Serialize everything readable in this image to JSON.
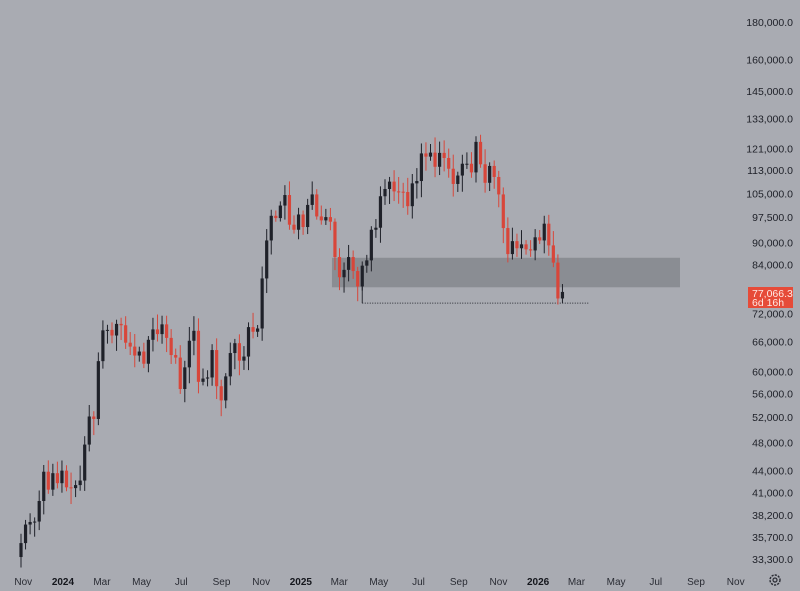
{
  "chart_data": {
    "type": "candlestick",
    "interval": "weekly",
    "y_scale": "log",
    "ylim": [
      32000,
      185000
    ],
    "y_ticks": [
      "180,000.0",
      "160,000.0",
      "145,000.0",
      "133,000.0",
      "121,000.0",
      "113,000.0",
      "105,000.0",
      "97,500.0",
      "90,000.0",
      "84,000.0",
      "72,000.0",
      "66,000.0",
      "60,000.0",
      "56,000.0",
      "52,000.0",
      "48,000.0",
      "44,000.0",
      "41,000.0",
      "38,200.0",
      "35,700.0",
      "33,300.0"
    ],
    "x_ticks": [
      {
        "label": "Nov",
        "date": "2023-11-01",
        "year": false
      },
      {
        "label": "2024",
        "date": "2024-01-01",
        "year": true
      },
      {
        "label": "Mar",
        "date": "2024-03-01",
        "year": false
      },
      {
        "label": "May",
        "date": "2024-05-01",
        "year": false
      },
      {
        "label": "Jul",
        "date": "2024-07-01",
        "year": false
      },
      {
        "label": "Sep",
        "date": "2024-09-01",
        "year": false
      },
      {
        "label": "Nov",
        "date": "2024-11-01",
        "year": false
      },
      {
        "label": "2025",
        "date": "2025-01-01",
        "year": true
      },
      {
        "label": "Mar",
        "date": "2025-03-01",
        "year": false
      },
      {
        "label": "May",
        "date": "2025-05-01",
        "year": false
      },
      {
        "label": "Jul",
        "date": "2025-07-01",
        "year": false
      },
      {
        "label": "Sep",
        "date": "2025-09-01",
        "year": false
      },
      {
        "label": "Nov",
        "date": "2025-11-01",
        "year": false
      },
      {
        "label": "2026",
        "date": "2026-01-01",
        "year": true
      },
      {
        "label": "Mar",
        "date": "2026-03-01",
        "year": false
      },
      {
        "label": "May",
        "date": "2026-05-01",
        "year": false
      },
      {
        "label": "Jul",
        "date": "2026-07-01",
        "year": false
      },
      {
        "label": "Sep",
        "date": "2026-09-01",
        "year": false
      },
      {
        "label": "Nov",
        "date": "2026-11-01",
        "year": false
      }
    ],
    "first_week": "2023-10-30",
    "closes": [
      35000,
      37100,
      37400,
      37450,
      39950,
      43800,
      41400,
      43600,
      42250,
      43950,
      41700,
      41600,
      42000,
      42600,
      47700,
      52100,
      51700,
      62000,
      68300,
      68400,
      67200,
      69700,
      69400,
      65700,
      64900,
      63100,
      63900,
      61500,
      66300,
      68500,
      67500,
      69600,
      66700,
      63200,
      62700,
      56800,
      60800,
      66100,
      68200,
      58100,
      58700,
      58900,
      64200,
      57300,
      54800,
      59100,
      63600,
      65600,
      62100,
      62900,
      69000,
      68000,
      68700,
      80400,
      90600,
      97900,
      97200,
      101100,
      104500,
      95200,
      93700,
      98300,
      94500,
      101300,
      104700,
      97700,
      96500,
      97500,
      96100,
      86000,
      80700,
      82600,
      86000,
      82300,
      78400,
      83700,
      85100,
      93700,
      94300,
      104100,
      106500,
      109000,
      105700,
      105600,
      105500,
      100900,
      108400,
      109200,
      119100,
      117900,
      119400,
      114200,
      119300,
      117400,
      113500,
      108200,
      111100,
      115300,
      115300,
      112200,
      123500,
      115100,
      108600,
      114500,
      110600,
      104700,
      94200,
      86800,
      90400,
      88400,
      89500,
      88100,
      87800,
      91500,
      90600,
      95500,
      89200,
      84500,
      75500,
      77066.3
    ],
    "colors": {
      "up": "#1f2129",
      "down": "#d8463a",
      "background": "#a9abb2",
      "zone": "#85878d",
      "last_price": "#e64b38"
    },
    "zone": {
      "from": 78200,
      "to": 85800,
      "start": "2025-02-24",
      "end": "2026-07-27"
    },
    "dotted_level": {
      "price": 74400,
      "start": "2025-04-07",
      "end": "2026-06-08"
    },
    "last_price": {
      "value": "77,066.3",
      "countdown": "6d 16h"
    }
  },
  "toolbar": {
    "settings_icon": "gear-icon"
  }
}
